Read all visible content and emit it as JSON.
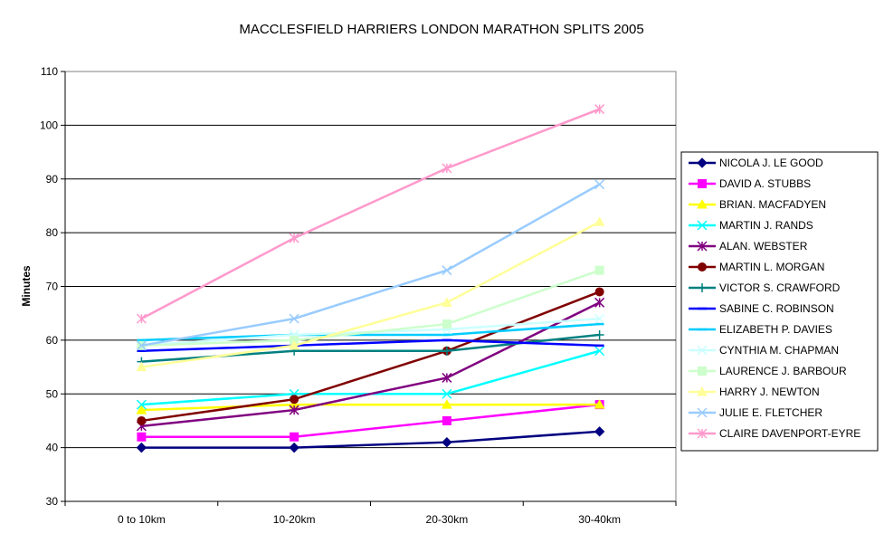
{
  "chart_data": {
    "type": "line",
    "title": "MACCLESFIELD HARRIERS LONDON MARATHON SPLITS 2005",
    "ylabel": "Minutes",
    "xlabel": "",
    "categories": [
      "0 to 10km",
      "10-20km",
      "20-30km",
      "30-40km"
    ],
    "ylim": [
      30,
      110
    ],
    "yticks": [
      30,
      40,
      50,
      60,
      70,
      80,
      90,
      100,
      110
    ],
    "grid": true,
    "legend_position": "right",
    "series": [
      {
        "name": "NICOLA J. LE GOOD",
        "values": [
          40,
          40,
          41,
          43
        ],
        "color": "#000080",
        "marker": "diamond"
      },
      {
        "name": "DAVID A. STUBBS",
        "values": [
          42,
          42,
          45,
          48
        ],
        "color": "#FF00FF",
        "marker": "square"
      },
      {
        "name": "BRIAN. MACFADYEN",
        "values": [
          47,
          48,
          48,
          48
        ],
        "color": "#FFFF00",
        "marker": "triangle"
      },
      {
        "name": "MARTIN J. RANDS",
        "values": [
          48,
          50,
          50,
          58
        ],
        "color": "#00FFFF",
        "marker": "x"
      },
      {
        "name": "ALAN. WEBSTER",
        "values": [
          44,
          47,
          53,
          67
        ],
        "color": "#800080",
        "marker": "star"
      },
      {
        "name": "MARTIN L. MORGAN",
        "values": [
          45,
          49,
          58,
          69
        ],
        "color": "#800000",
        "marker": "circle"
      },
      {
        "name": "VICTOR S. CRAWFORD",
        "values": [
          56,
          58,
          58,
          61
        ],
        "color": "#008080",
        "marker": "plus"
      },
      {
        "name": "SABINE C. ROBINSON",
        "values": [
          58,
          59,
          60,
          59
        ],
        "color": "#0000FF",
        "marker": "dash"
      },
      {
        "name": "ELIZABETH P. DAVIES",
        "values": [
          60,
          61,
          61,
          63
        ],
        "color": "#00CCFF",
        "marker": "dash"
      },
      {
        "name": "CYNTHIA M. CHAPMAN",
        "values": [
          59,
          61,
          62,
          64
        ],
        "color": "#CCFFFF",
        "marker": "x"
      },
      {
        "name": "LAURENCE J. BARBOUR",
        "values": [
          59,
          60,
          63,
          73
        ],
        "color": "#CCFFCC",
        "marker": "square"
      },
      {
        "name": "HARRY J. NEWTON",
        "values": [
          55,
          59,
          67,
          82
        ],
        "color": "#FFFF99",
        "marker": "triangle"
      },
      {
        "name": "JULIE E. FLETCHER",
        "values": [
          59,
          64,
          73,
          89
        ],
        "color": "#99CCFF",
        "marker": "x"
      },
      {
        "name": "CLAIRE DAVENPORT-EYRE",
        "values": [
          64,
          79,
          92,
          103
        ],
        "color": "#FF99CC",
        "marker": "star"
      }
    ]
  }
}
